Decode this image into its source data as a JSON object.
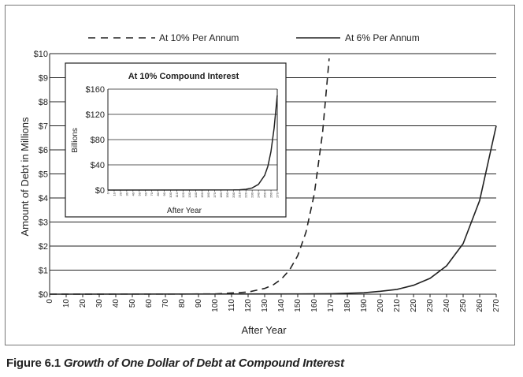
{
  "chart_data": [
    {
      "type": "line",
      "xlabel": "After Year",
      "ylabel": "Amount of Debt in Millions",
      "xlim": [
        0,
        270
      ],
      "ylim": [
        0,
        10
      ],
      "x_ticks": [
        0,
        10,
        20,
        30,
        40,
        50,
        60,
        70,
        80,
        90,
        100,
        110,
        120,
        130,
        140,
        150,
        160,
        170,
        180,
        190,
        200,
        210,
        220,
        230,
        240,
        250,
        260,
        270
      ],
      "y_ticks": [
        0,
        1,
        2,
        3,
        4,
        5,
        6,
        7,
        8,
        9,
        10
      ],
      "y_tick_labels": [
        "$0",
        "$1",
        "$2",
        "$3",
        "$4",
        "$5",
        "$6",
        "$7",
        "$8",
        "$9",
        "$10"
      ],
      "grid": "horizontal",
      "legend_position": "top",
      "series": [
        {
          "name": "At 10% Per Annum",
          "rate": 0.1,
          "style": "dashed",
          "x": [
            0,
            100,
            120,
            130,
            135,
            140,
            145,
            150,
            155,
            160,
            165,
            169
          ],
          "y": [
            0,
            0.01,
            0.09,
            0.24,
            0.38,
            0.62,
            1.0,
            1.6,
            2.58,
            4.16,
            6.7,
            9.8
          ]
        },
        {
          "name": "At 6% Per Annum",
          "rate": 0.06,
          "style": "solid",
          "x": [
            0,
            150,
            170,
            180,
            190,
            200,
            210,
            220,
            230,
            240,
            250,
            260,
            270
          ],
          "y": [
            0,
            0.01,
            0.02,
            0.04,
            0.06,
            0.12,
            0.2,
            0.37,
            0.66,
            1.18,
            2.1,
            3.9,
            7.0
          ]
        }
      ]
    },
    {
      "type": "line",
      "title": "At 10% Compound Interest",
      "xlabel": "After Year",
      "ylabel": "Billions",
      "xlim": [
        0,
        270
      ],
      "ylim": [
        0,
        160
      ],
      "x_ticks": [
        0,
        10,
        20,
        30,
        40,
        50,
        60,
        70,
        80,
        90,
        100,
        110,
        120,
        130,
        140,
        150,
        160,
        170,
        180,
        190,
        200,
        210,
        220,
        230,
        240,
        250,
        260,
        270
      ],
      "y_ticks": [
        0,
        40,
        80,
        120,
        160
      ],
      "y_tick_labels": [
        "$0",
        "$40",
        "$80",
        "$120",
        "$160"
      ],
      "grid": "horizontal",
      "series": [
        {
          "rate": 0.1,
          "style": "solid",
          "x": [
            0,
            200,
            210,
            220,
            230,
            240,
            250,
            255,
            260,
            265,
            270
          ],
          "y": [
            0,
            0.19,
            0.5,
            1.3,
            3.4,
            9.0,
            23.5,
            37.8,
            60.9,
            98.1,
            150.0
          ]
        }
      ]
    }
  ],
  "caption": {
    "label": "Figure 6.1",
    "title": "Growth of One Dollar of Debt at Compound Interest"
  }
}
